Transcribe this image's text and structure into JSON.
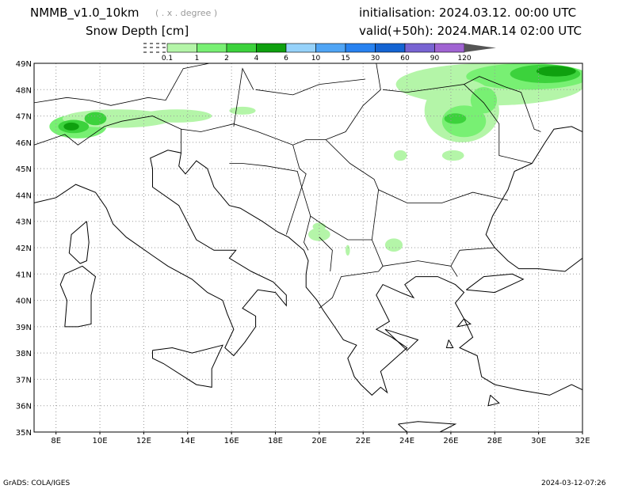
{
  "header": {
    "model": "NMMB_v1.0_10km",
    "resolution": "( . x . degree )",
    "field": "Snow Depth [cm]",
    "initialisation": "initialisation: 2024.03.12.  00:00 UTC",
    "valid": "valid(+50h): 2024.MAR.14 02:00 UTC"
  },
  "legend": {
    "levels": [
      "0.1",
      "1",
      "2",
      "4",
      "6",
      "10",
      "15",
      "30",
      "60",
      "90",
      "120"
    ],
    "colors": [
      "#b4f5a8",
      "#78f073",
      "#3cd23c",
      "#0fa00f",
      "#96d2fa",
      "#50a5f5",
      "#2882f0",
      "#1464d2",
      "#7864d2",
      "#a064d2",
      "#555555"
    ]
  },
  "axes": {
    "lon_labels": [
      "8E",
      "10E",
      "12E",
      "14E",
      "16E",
      "18E",
      "20E",
      "22E",
      "24E",
      "26E",
      "28E",
      "30E",
      "32E"
    ],
    "lat_labels": [
      "35N",
      "36N",
      "37N",
      "38N",
      "39N",
      "40N",
      "41N",
      "42N",
      "43N",
      "44N",
      "45N",
      "46N",
      "47N",
      "48N",
      "49N"
    ],
    "lon_range": [
      7,
      32
    ],
    "lat_range": [
      35,
      49
    ]
  },
  "footer": {
    "credit": "GrADS: COLA/IGES",
    "timestamp": "2024-03-12-07:26"
  }
}
